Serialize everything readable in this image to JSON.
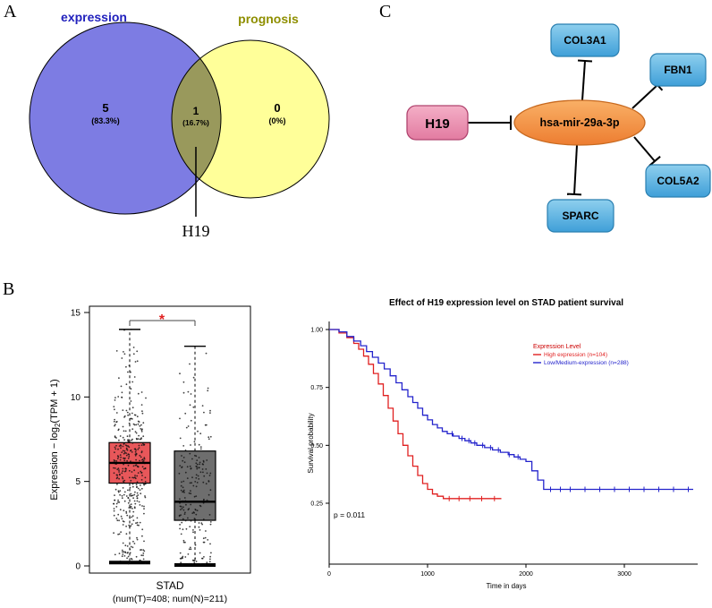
{
  "panels": {
    "a": {
      "label": "A",
      "venn": {
        "left_label": "expression",
        "right_label": "prognosis",
        "left_count": "5",
        "left_pct": "(83.3%)",
        "overlap_count": "1",
        "overlap_pct": "(16.7%)",
        "right_count": "0",
        "right_pct": "(0%)",
        "callout_label": "H19",
        "colors": {
          "left_fill": "#7d7ce3",
          "right_fill": "#ffff99",
          "overlap_fill": "#99995c",
          "left_label": "#2121bd",
          "right_label": "#8f8f00"
        }
      }
    },
    "b": {
      "label": "B"
    },
    "c": {
      "label": "C",
      "nodes": {
        "h19": {
          "label": "H19"
        },
        "mirna": {
          "label": "hsa-mir-29a-3p"
        },
        "col3a1": {
          "label": "COL3A1"
        },
        "fbn1": {
          "label": "FBN1"
        },
        "col5a2": {
          "label": "COL5A2"
        },
        "sparc": {
          "label": "SPARC"
        }
      },
      "colors": {
        "h19_light": "#f4afc6",
        "h19_dark": "#e27ba1",
        "mirna_light": "#f9b066",
        "mirna_dark": "#ed7d31",
        "target_light": "#8ecfee",
        "target_dark": "#3f9fd8"
      },
      "edges": [
        {
          "from": "H19",
          "to": "hsa-mir-29a-3p",
          "type": "inhibition"
        },
        {
          "from": "hsa-mir-29a-3p",
          "to": "COL3A1",
          "type": "inhibition"
        },
        {
          "from": "hsa-mir-29a-3p",
          "to": "FBN1",
          "type": "inhibition"
        },
        {
          "from": "hsa-mir-29a-3p",
          "to": "COL5A2",
          "type": "inhibition"
        },
        {
          "from": "hsa-mir-29a-3p",
          "to": "SPARC",
          "type": "inhibition"
        }
      ]
    }
  },
  "chart_data": [
    {
      "type": "boxplot",
      "panel": "B-left",
      "ylabel": "Expression − log2(TPM + 1)",
      "ylabel_parts": [
        "Expression − log",
        "2",
        "(TPM + 1)"
      ],
      "ylim": [
        0,
        15
      ],
      "yticks": [
        0,
        5,
        10,
        15
      ],
      "ytick_labels": [
        "0",
        "5",
        "10",
        "15"
      ],
      "xlabel": "STAD",
      "xlabel_sub": "(num(T)=408; num(N)=211)",
      "significance": "*",
      "significance_color": "#e02020",
      "groups": [
        {
          "name": "T",
          "n": 408,
          "box_color": "#e8575a",
          "median": 6.1,
          "q1": 4.9,
          "q3": 7.3,
          "whisker_low": 0.2,
          "whisker_high": 14.0,
          "scatter": {
            "mean": 5.8,
            "sd": 2.2,
            "min": 0.1,
            "max": 14.2,
            "seed": 7
          }
        },
        {
          "name": "N",
          "n": 211,
          "box_color": "#6e6e6e",
          "median": 3.8,
          "q1": 2.7,
          "q3": 6.8,
          "whisker_low": 0.05,
          "whisker_high": 13.0,
          "scatter": {
            "mean": 4.2,
            "sd": 2.6,
            "min": 0.05,
            "max": 13.1,
            "seed": 13
          }
        }
      ]
    },
    {
      "type": "line",
      "subtype": "kaplan-meier",
      "panel": "B-right",
      "title": "Effect of H19 expression level on STAD patient survival",
      "xlabel": "Time in days",
      "ylabel": "Survival probability",
      "xlim": [
        0,
        3750
      ],
      "xticks": [
        0,
        1000,
        2000,
        3000
      ],
      "xtick_labels": [
        "0",
        "1000",
        "2000",
        "3000"
      ],
      "yticks": [
        0.25,
        0.5,
        0.75,
        1.0
      ],
      "ytick_labels": [
        "0.25",
        "0.50",
        "0.75",
        "1.00"
      ],
      "p_value": "p = 0.011",
      "legend_title": "Expression Level",
      "legend_position": "right-upper",
      "series": [
        {
          "name": "High expression (n=104)",
          "color": "#e02020",
          "steps": [
            [
              0,
              1.0
            ],
            [
              100,
              0.985
            ],
            [
              180,
              0.965
            ],
            [
              250,
              0.94
            ],
            [
              300,
              0.915
            ],
            [
              350,
              0.885
            ],
            [
              400,
              0.85
            ],
            [
              450,
              0.81
            ],
            [
              500,
              0.765
            ],
            [
              550,
              0.715
            ],
            [
              600,
              0.66
            ],
            [
              650,
              0.605
            ],
            [
              700,
              0.55
            ],
            [
              750,
              0.5
            ],
            [
              800,
              0.455
            ],
            [
              850,
              0.41
            ],
            [
              900,
              0.37
            ],
            [
              950,
              0.335
            ],
            [
              1000,
              0.31
            ],
            [
              1050,
              0.29
            ],
            [
              1100,
              0.28
            ],
            [
              1160,
              0.27
            ],
            [
              1750,
              0.27
            ]
          ],
          "censors": [
            1220,
            1320,
            1430,
            1550,
            1680
          ]
        },
        {
          "name": "Low/Medium-expression (n=288)",
          "color": "#2424cc",
          "steps": [
            [
              0,
              1.0
            ],
            [
              100,
              0.99
            ],
            [
              180,
              0.97
            ],
            [
              250,
              0.95
            ],
            [
              320,
              0.93
            ],
            [
              380,
              0.905
            ],
            [
              440,
              0.88
            ],
            [
              500,
              0.855
            ],
            [
              560,
              0.83
            ],
            [
              620,
              0.8
            ],
            [
              680,
              0.77
            ],
            [
              740,
              0.74
            ],
            [
              800,
              0.71
            ],
            [
              850,
              0.685
            ],
            [
              900,
              0.66
            ],
            [
              950,
              0.63
            ],
            [
              1000,
              0.61
            ],
            [
              1050,
              0.59
            ],
            [
              1100,
              0.575
            ],
            [
              1150,
              0.56
            ],
            [
              1200,
              0.55
            ],
            [
              1260,
              0.54
            ],
            [
              1320,
              0.53
            ],
            [
              1380,
              0.52
            ],
            [
              1440,
              0.51
            ],
            [
              1500,
              0.5
            ],
            [
              1580,
              0.49
            ],
            [
              1660,
              0.48
            ],
            [
              1740,
              0.47
            ],
            [
              1820,
              0.46
            ],
            [
              1880,
              0.45
            ],
            [
              1940,
              0.44
            ],
            [
              2000,
              0.43
            ],
            [
              2060,
              0.39
            ],
            [
              2120,
              0.35
            ],
            [
              2180,
              0.31
            ],
            [
              3700,
              0.31
            ]
          ],
          "censors": [
            1250,
            1350,
            1420,
            1480,
            1560,
            1640,
            1720,
            1830,
            1920,
            2250,
            2350,
            2450,
            2600,
            2750,
            2900,
            3050,
            3200,
            3350,
            3500,
            3650
          ]
        }
      ]
    }
  ]
}
